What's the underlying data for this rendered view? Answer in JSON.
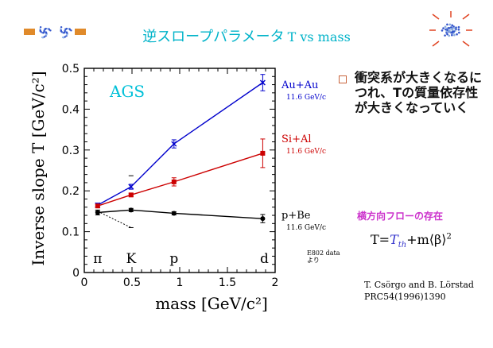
{
  "title": {
    "main": "逆スロープパラメータ",
    "sub": "T vs mass"
  },
  "bullet": "衝突系が大きくなるにつれ、Tの質量依存性が大きくなっていく",
  "flow_label": "横方向フローの存在",
  "formula": {
    "lhs": "T=",
    "tth": "T",
    "tth_sub": "th",
    "rest": "+m⟨β⟩",
    "sup": "2"
  },
  "reference": [
    "T. Csörgo and B. Lörstad",
    "PRC54(1996)1390"
  ],
  "data_source": [
    "E802 data",
    "より"
  ],
  "icons": [
    "collision-left-icon",
    "collision-right-icon"
  ],
  "chart_data": {
    "type": "line",
    "title": "AGS",
    "xlabel": "mass [GeV/c²]",
    "ylabel": "Inverse slope T [GeV/c²]",
    "xlim": [
      0,
      2
    ],
    "ylim": [
      0,
      0.5
    ],
    "xticks": [
      0,
      0.5,
      1,
      1.5,
      2
    ],
    "yticks": [
      0,
      0.1,
      0.2,
      0.3,
      0.4,
      0.5
    ],
    "xtick_labels": [
      "0",
      "0.5",
      "1",
      "1.5",
      "2"
    ],
    "ytick_labels": [
      "0",
      "0.1",
      "0.2",
      "0.3",
      "0.4",
      "0.5"
    ],
    "particle_labels": [
      {
        "text": "π",
        "x": 0.14
      },
      {
        "text": "K",
        "x": 0.49
      },
      {
        "text": "p",
        "x": 0.94
      },
      {
        "text": "d",
        "x": 1.87
      }
    ],
    "series": [
      {
        "name": "Au+Au",
        "energy": "11.6 GeV/c",
        "color": "#0000cc",
        "x": [
          0.14,
          0.49,
          0.94,
          1.87
        ],
        "y": [
          0.165,
          0.21,
          0.315,
          0.465
        ],
        "err": [
          0.005,
          0.006,
          0.01,
          0.02
        ],
        "marker": "x"
      },
      {
        "name": "Si+Al",
        "energy": "11.6 GeV/c",
        "color": "#cc0000",
        "x": [
          0.14,
          0.49,
          0.94,
          1.87
        ],
        "y": [
          0.163,
          0.19,
          0.222,
          0.292
        ],
        "err": [
          0.004,
          0.004,
          0.01,
          0.035
        ],
        "marker": "square"
      },
      {
        "name": "p+Be",
        "energy": "11.6 GeV/c",
        "color": "#000000",
        "x": [
          0.14,
          0.49,
          0.94,
          1.87
        ],
        "y": [
          0.147,
          0.153,
          0.145,
          0.132
        ],
        "err": [
          0.006,
          0.004,
          0.004,
          0.01
        ],
        "marker": "circle"
      }
    ],
    "extra_points": {
      "color": "#000000",
      "x": [
        0.14,
        0.49
      ],
      "y": [
        0.15,
        0.11
      ],
      "err": [
        0.005,
        0.005
      ],
      "style": "dotted"
    },
    "k_errorbar_top": 0.237
  }
}
